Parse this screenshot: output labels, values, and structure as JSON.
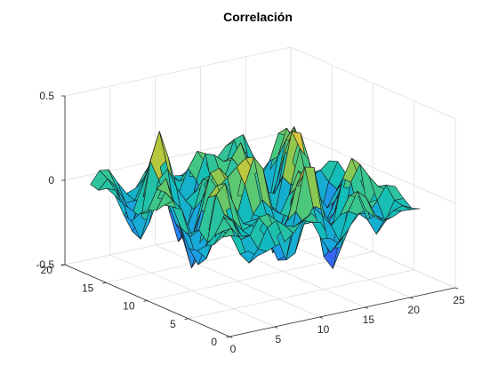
{
  "chart_data": {
    "type": "surface",
    "title": "Correlación",
    "xlabel": "",
    "ylabel": "",
    "zlabel": "",
    "grid": true,
    "colormap": "parula",
    "xlim": [
      0,
      25
    ],
    "ylim": [
      0,
      20
    ],
    "zlim": [
      -0.5,
      0.5
    ],
    "x_ticks": [
      "0",
      "5",
      "10",
      "15",
      "20",
      "25"
    ],
    "y_ticks": [
      "0",
      "5",
      "10",
      "15",
      "20"
    ],
    "z_ticks": [
      "-0.5",
      "0",
      "0.5"
    ],
    "x": [
      1,
      22
    ],
    "y": [
      1,
      18
    ],
    "z_extent": [
      -0.42,
      0.36
    ],
    "colorRange": [
      -0.45,
      0.4
    ],
    "colors": {
      "background": "#ffffff",
      "edge": "#1a1a1a",
      "parula_stops": [
        "#3e26a8",
        "#4252f0",
        "#2b7ff7",
        "#19a4df",
        "#12beb9",
        "#46c881",
        "#a9c73e",
        "#f3c63a",
        "#f9fb15"
      ]
    }
  }
}
